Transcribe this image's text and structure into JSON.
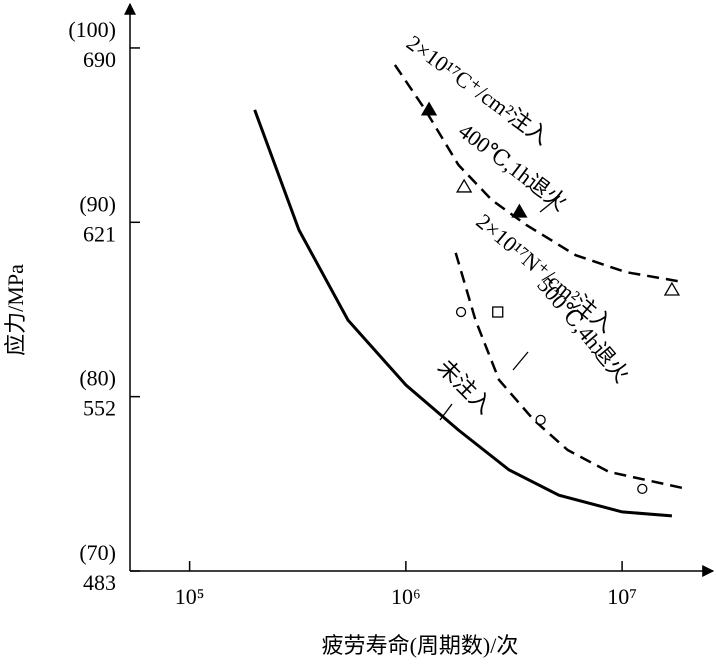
{
  "chart_data": {
    "type": "line",
    "x_label": "疲劳寿命(周期数)/次",
    "y_label": "应力/MPa",
    "x_scale": "log",
    "xlim": [
      53000,
      25500000
    ],
    "xticks": [
      {
        "value": 100000,
        "label": "10⁵"
      },
      {
        "value": 1000000,
        "label": "10⁶"
      },
      {
        "value": 10000000,
        "label": "10⁷"
      }
    ],
    "ylim": [
      483,
      707
    ],
    "yticks": [
      483,
      552,
      621,
      690
    ],
    "ytick_alt_labels": [
      "(70)",
      "(80)",
      "(90)",
      "(100)"
    ],
    "series": [
      {
        "name": "未注入",
        "color": "#000000",
        "dashed": false,
        "x": [
          200000,
          320000,
          540000,
          1000000,
          1750000,
          3000000,
          5100000,
          10000000,
          17000000
        ],
        "values": [
          665.5,
          618,
          582.3,
          556.6,
          538.8,
          523,
          513,
          506.4,
          504.8
        ]
      },
      {
        "name": "2×10¹⁷C⁺/cm²注入",
        "color": "#000000",
        "dashed": true,
        "x": [
          890000,
          1230000,
          1750000,
          2500000,
          3600000,
          6100000,
          10400000,
          19000000
        ],
        "values": [
          683.3,
          665.5,
          643.7,
          629.8,
          620,
          608,
          601.3,
          597.4
        ]
      },
      {
        "name": "2×10¹⁷N⁺/cm²注入",
        "color": "#000000",
        "dashed": true,
        "x": [
          1700000,
          2100000,
          2700000,
          3900000,
          5600000,
          8700000,
          19000000
        ],
        "values": [
          608.9,
          582.3,
          558.6,
          542.8,
          530.9,
          522.2,
          515.9
        ]
      }
    ],
    "marker_groups": [
      {
        "shape": "triangle",
        "filled": true,
        "x": [
          1280000,
          3350000
        ],
        "y": [
          665.5,
          625.1
        ]
      },
      {
        "shape": "triangle",
        "filled": false,
        "x": [
          1860000,
          17000000
        ],
        "y": [
          635,
          594.2
        ]
      },
      {
        "shape": "circle",
        "filled": false,
        "x": [
          1800000,
          4200000,
          12400000
        ],
        "y": [
          585.5,
          542.8,
          515.5
        ]
      },
      {
        "shape": "square",
        "filled": false,
        "x": [
          2660000
        ],
        "y": [
          585.5
        ]
      }
    ],
    "annotations": [
      "400℃,1h退火",
      "500℃,4h退火"
    ]
  }
}
